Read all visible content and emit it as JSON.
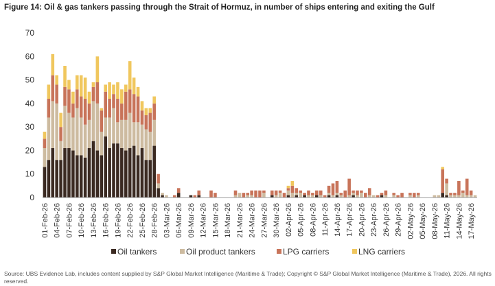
{
  "chart_data": {
    "type": "bar",
    "stacked": true,
    "title": "Figure 14: Oil & gas tankers passing through the Strait of Hormuz, in number of ships entering and exiting the Gulf",
    "source": "Source: UBS Evidence Lab, includes content supplied by S&P Global Market Intelligence (Maritime & Trade); Copyright © S&P Global Market Intelligence (Maritime & Trade), 2026. All rights reserved.",
    "categories": [
      "01-Feb-26",
      null,
      null,
      "04-Feb-26",
      null,
      null,
      "07-Feb-26",
      null,
      null,
      "10-Feb-26",
      null,
      null,
      "13-Feb-26",
      null,
      null,
      "16-Feb-26",
      null,
      null,
      "19-Feb-26",
      null,
      null,
      "22-Feb-26",
      null,
      null,
      "25-Feb-26",
      null,
      null,
      "28-Feb-26",
      null,
      null,
      "03-Mar-26",
      null,
      null,
      "06-Mar-26",
      null,
      null,
      "09-Mar-26",
      null,
      null,
      "12-Mar-26",
      null,
      null,
      "15-Mar-26",
      null,
      null,
      "18-Mar-26",
      null,
      null,
      "21-Mar-26",
      null,
      null,
      "24-Mar-26",
      null,
      null,
      "27-Mar-26",
      null,
      null,
      "30-Mar-26",
      null,
      null,
      "02-Apr-26",
      null,
      null,
      "05-Apr-26",
      null,
      null,
      "08-Apr-26",
      null,
      null,
      "11-Apr-26",
      null,
      null,
      "14-Apr-26",
      null,
      null,
      "17-Apr-26",
      null,
      null,
      "20-Apr-26",
      null,
      null,
      "23-Apr-26",
      null,
      null,
      "26-Apr-26",
      null,
      null,
      "29-Apr-26",
      null,
      null,
      "02-May-26",
      null,
      null,
      "05-May-26",
      null,
      null,
      "08-May-26",
      null,
      null,
      "11-May-26",
      null,
      null,
      "14-May-26",
      null,
      null,
      "17-May-26",
      null
    ],
    "series": [
      {
        "name": "Oil tankers",
        "color": "#3b2a22",
        "values": [
          13,
          16,
          21,
          16,
          16,
          21,
          21,
          20,
          18,
          18,
          17,
          21,
          24,
          20,
          18,
          26,
          21,
          23,
          23,
          21,
          20,
          21,
          22,
          18,
          21,
          16,
          16,
          22,
          4,
          1,
          0,
          0,
          0,
          2,
          0,
          0,
          1,
          0,
          1,
          0,
          0,
          0,
          0,
          0,
          0,
          0,
          0,
          0,
          0,
          0,
          0,
          0,
          0,
          0,
          0,
          0,
          1,
          0,
          0,
          0,
          1,
          0,
          1,
          0,
          1,
          0,
          0,
          1,
          0,
          0,
          1,
          0,
          1,
          0,
          0,
          0,
          1,
          0,
          0,
          0,
          0,
          0,
          0,
          1,
          0,
          0,
          0,
          0,
          0,
          0,
          0,
          0,
          0,
          0,
          0,
          0,
          0,
          0,
          2,
          1,
          0,
          0,
          0,
          0,
          0,
          0,
          0
        ]
      },
      {
        "name": "Oil product tankers",
        "color": "#cdbba0",
        "values": [
          8,
          18,
          20,
          24,
          8,
          18,
          15,
          14,
          20,
          16,
          14,
          12,
          17,
          20,
          10,
          8,
          13,
          15,
          9,
          12,
          13,
          15,
          10,
          14,
          10,
          13,
          12,
          11,
          2,
          1,
          1,
          0,
          0,
          0,
          0,
          0,
          0,
          0,
          0,
          0,
          0,
          0,
          0,
          0,
          0,
          0,
          0,
          1,
          2,
          0,
          1,
          1,
          0,
          0,
          2,
          0,
          0,
          1,
          2,
          0,
          2,
          2,
          1,
          2,
          0,
          1,
          1,
          0,
          1,
          0,
          1,
          1,
          1,
          1,
          0,
          1,
          1,
          1,
          2,
          0,
          1,
          1,
          0,
          0,
          1,
          0,
          1,
          0,
          0,
          0,
          1,
          0,
          1,
          0,
          0,
          0,
          1,
          1,
          0,
          5,
          1,
          1,
          1,
          2,
          1,
          1,
          1
        ]
      },
      {
        "name": "LPG carriers",
        "color": "#c8745a",
        "values": [
          4,
          8,
          11,
          8,
          6,
          8,
          10,
          6,
          8,
          9,
          11,
          7,
          6,
          9,
          9,
          11,
          8,
          6,
          10,
          7,
          12,
          10,
          12,
          11,
          6,
          6,
          8,
          7,
          4,
          0,
          0,
          0,
          1,
          2,
          0,
          0,
          0,
          1,
          2,
          0,
          0,
          3,
          2,
          0,
          0,
          0,
          0,
          2,
          0,
          2,
          1,
          2,
          3,
          3,
          1,
          0,
          2,
          2,
          1,
          2,
          1,
          3,
          2,
          1,
          1,
          2,
          1,
          2,
          2,
          1,
          3,
          5,
          5,
          1,
          3,
          7,
          1,
          2,
          1,
          2,
          3,
          0,
          1,
          1,
          2,
          0,
          1,
          1,
          2,
          0,
          1,
          2,
          1,
          0,
          0,
          0,
          0,
          0,
          10,
          2,
          1,
          1,
          6,
          1,
          7,
          2,
          0
        ]
      },
      {
        "name": "LNG carriers",
        "color": "#f0c75e",
        "values": [
          3,
          6,
          9,
          4,
          6,
          9,
          4,
          5,
          6,
          9,
          9,
          5,
          2,
          11,
          1,
          3,
          7,
          4,
          7,
          6,
          3,
          12,
          7,
          4,
          4,
          3,
          2,
          3,
          0,
          0,
          0,
          0,
          0,
          0,
          0,
          0,
          0,
          0,
          0,
          0,
          0,
          0,
          0,
          0,
          0,
          0,
          0,
          0,
          0,
          0,
          0,
          0,
          0,
          0,
          0,
          0,
          0,
          0,
          0,
          0,
          1,
          2,
          0,
          0,
          0,
          0,
          0,
          0,
          0,
          0,
          0,
          0,
          0,
          0,
          0,
          0,
          0,
          0,
          0,
          0,
          0,
          0,
          0,
          0,
          0,
          0,
          0,
          0,
          0,
          0,
          0,
          0,
          0,
          0,
          0,
          0,
          0,
          0,
          1,
          0,
          0,
          0,
          0,
          0,
          0,
          0,
          0
        ]
      }
    ],
    "ylim": [
      0,
      70
    ],
    "yticks": [
      0,
      10,
      20,
      30,
      40,
      50,
      60,
      70
    ],
    "grid": false,
    "legend": "bottom"
  }
}
